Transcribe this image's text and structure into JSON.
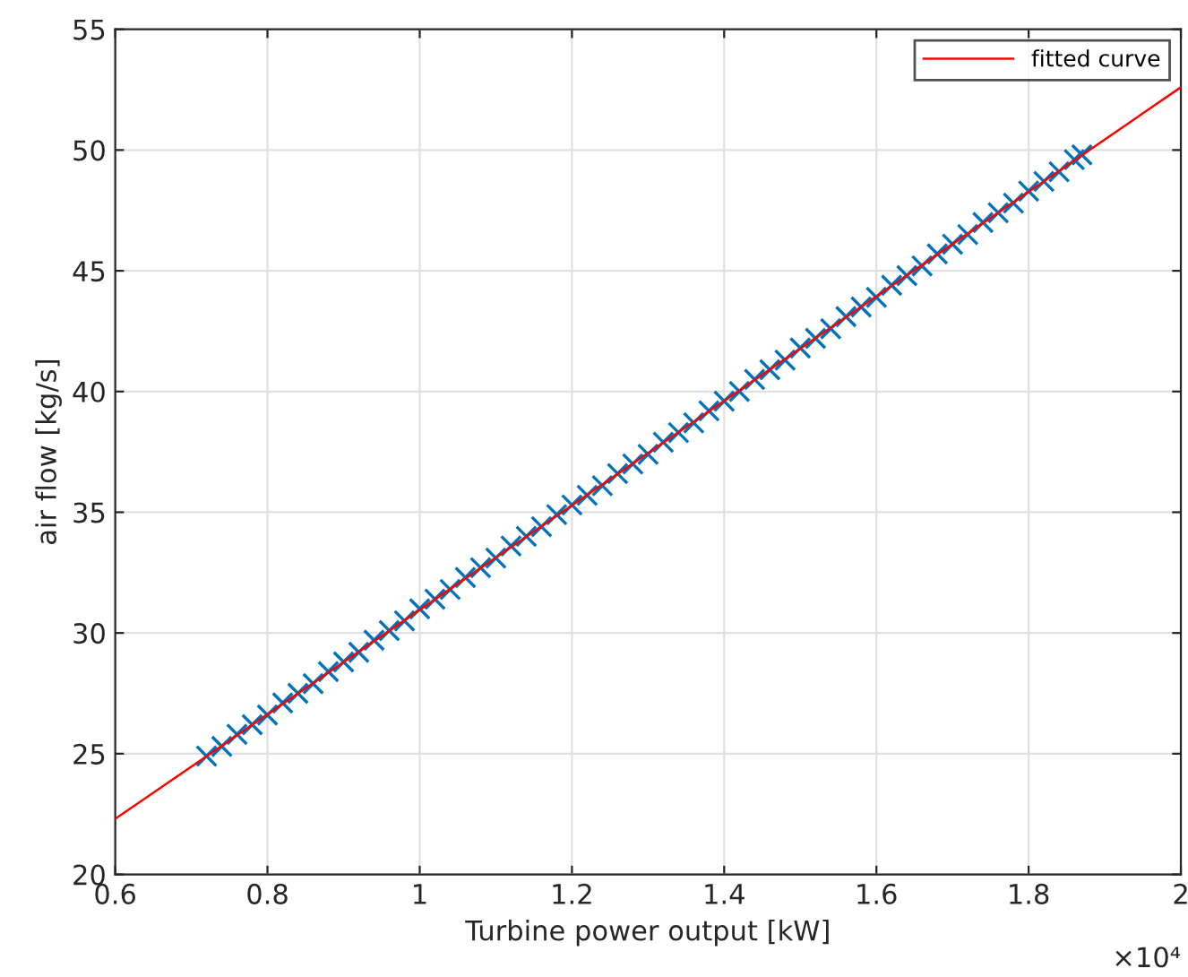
{
  "chart_data": {
    "type": "scatter",
    "xlabel": "Turbine power output [kW]",
    "ylabel": "air flow [kg/s]",
    "annotations": [
      "×10⁴"
    ],
    "series": [
      {
        "color": "#0072bd",
        "marker": "cross",
        "x": [
          0.72,
          0.74,
          0.76,
          0.78,
          0.8,
          0.82,
          0.84,
          0.86,
          0.88,
          0.9,
          0.92,
          0.94,
          0.96,
          0.98,
          1.0,
          1.02,
          1.04,
          1.06,
          1.08,
          1.1,
          1.12,
          1.14,
          1.16,
          1.18,
          1.2,
          1.22,
          1.24,
          1.26,
          1.28,
          1.3,
          1.32,
          1.34,
          1.36,
          1.38,
          1.4,
          1.42,
          1.44,
          1.46,
          1.48,
          1.5,
          1.52,
          1.54,
          1.56,
          1.58,
          1.6,
          1.62,
          1.64,
          1.66,
          1.68,
          1.7,
          1.72,
          1.74,
          1.76,
          1.78,
          1.8,
          1.82,
          1.84,
          1.86,
          1.87
        ],
        "values": [
          24.9,
          25.3,
          25.8,
          26.2,
          26.6,
          27.1,
          27.5,
          27.9,
          28.4,
          28.8,
          29.2,
          29.7,
          30.1,
          30.5,
          31.0,
          31.4,
          31.8,
          32.3,
          32.7,
          33.1,
          33.6,
          34.0,
          34.4,
          34.9,
          35.3,
          35.7,
          36.1,
          36.6,
          37.0,
          37.4,
          37.9,
          38.3,
          38.7,
          39.2,
          39.6,
          40.0,
          40.5,
          40.9,
          41.3,
          41.8,
          42.2,
          42.6,
          43.1,
          43.5,
          43.9,
          44.4,
          44.8,
          45.2,
          45.7,
          46.1,
          46.5,
          47.0,
          47.4,
          47.8,
          48.3,
          48.7,
          49.1,
          49.6,
          49.8
        ]
      },
      {
        "type": "line",
        "name": "fitted curve",
        "color": "#ff0000",
        "x": [
          0.6,
          2.0
        ],
        "values": [
          22.3,
          52.6
        ]
      }
    ],
    "xlim": [
      0.6,
      2
    ],
    "ylim": [
      20,
      55
    ],
    "xticks": [
      0.6,
      0.8,
      1,
      1.2,
      1.4,
      1.6,
      1.8,
      2
    ],
    "yticks": [
      20,
      25,
      30,
      35,
      40,
      45,
      50,
      55
    ],
    "grid": true,
    "legend": "top right"
  }
}
